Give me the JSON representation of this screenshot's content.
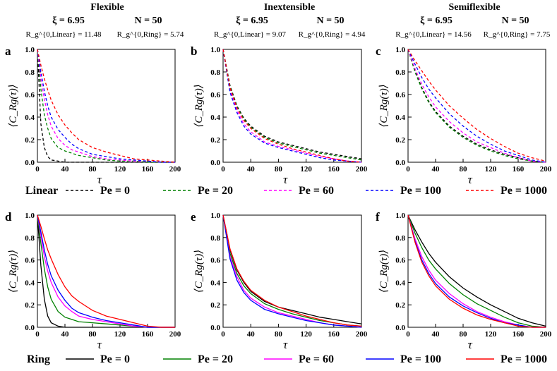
{
  "columns": [
    {
      "title": "Flexible",
      "xi": "ξ = 6.95",
      "N": "N = 50",
      "rg_linear": "R_g^{0,Linear} = 11.48",
      "rg_ring": "R_g^{0,Ring} = 5.74"
    },
    {
      "title": "Inextensible",
      "xi": "ξ = 6.95",
      "N": "N = 50",
      "rg_linear": "R_g^{0,Linear} = 9.07",
      "rg_ring": "R_g^{0,Ring} = 4.94"
    },
    {
      "title": "Semiflexible",
      "xi": "ξ = 6.95",
      "N": "N = 50",
      "rg_linear": "R_g^{0,Linear} = 14.56",
      "rg_ring": "R_g^{0,Ring} = 7.75"
    }
  ],
  "axes": {
    "xlabel": "τ",
    "ylabel": "⟨C_Rg(τ)⟩",
    "x_ticks": [
      "0",
      "40",
      "80",
      "120",
      "160",
      "200"
    ],
    "y_ticks": [
      "0.0",
      "0.2",
      "0.4",
      "0.6",
      "0.8",
      "1.0"
    ],
    "xlim": [
      0,
      200
    ],
    "ylim": [
      0,
      1
    ]
  },
  "legends": {
    "linear": {
      "title": "Linear",
      "style": "dashed"
    },
    "ring": {
      "title": "Ring",
      "style": "solid"
    },
    "entries": [
      {
        "label": "Pe = 0",
        "color": "#000000"
      },
      {
        "label": "Pe = 20",
        "color": "#008000"
      },
      {
        "label": "Pe = 60",
        "color": "#ff00ff"
      },
      {
        "label": "Pe = 100",
        "color": "#0000ff"
      },
      {
        "label": "Pe = 1000",
        "color": "#ff0000"
      }
    ]
  },
  "chart_data": [
    {
      "panel": "a",
      "type": "line",
      "title": "Flexible — Linear",
      "xlabel": "τ",
      "ylabel": "⟨C_Rg(τ)⟩",
      "xlim": [
        0,
        200
      ],
      "ylim": [
        0,
        1
      ],
      "line_style": "dashed",
      "x": [
        0,
        5,
        10,
        15,
        20,
        30,
        40,
        50,
        60,
        80,
        100,
        120,
        140,
        160,
        180,
        200
      ],
      "series": [
        {
          "name": "Pe = 0",
          "color": "#000000",
          "values": [
            1.0,
            0.34,
            0.13,
            0.05,
            0.02,
            0.01,
            0.0,
            0.0,
            0.0,
            0.0,
            0.0,
            0.0,
            0.0,
            0.0,
            0.0,
            0.0
          ]
        },
        {
          "name": "Pe = 20",
          "color": "#008000",
          "values": [
            1.0,
            0.65,
            0.42,
            0.3,
            0.21,
            0.13,
            0.1,
            0.08,
            0.06,
            0.04,
            0.02,
            0.01,
            0.01,
            0.0,
            0.0,
            0.0
          ]
        },
        {
          "name": "Pe = 60",
          "color": "#ff00ff",
          "values": [
            1.0,
            0.74,
            0.56,
            0.42,
            0.32,
            0.21,
            0.15,
            0.11,
            0.09,
            0.05,
            0.03,
            0.02,
            0.01,
            0.01,
            0.0,
            0.0
          ]
        },
        {
          "name": "Pe = 100",
          "color": "#0000ff",
          "values": [
            1.0,
            0.8,
            0.63,
            0.5,
            0.4,
            0.29,
            0.22,
            0.16,
            0.12,
            0.07,
            0.05,
            0.03,
            0.02,
            0.01,
            0.0,
            0.0
          ]
        },
        {
          "name": "Pe = 1000",
          "color": "#ff0000",
          "values": [
            1.0,
            0.86,
            0.74,
            0.64,
            0.55,
            0.42,
            0.33,
            0.26,
            0.2,
            0.13,
            0.09,
            0.06,
            0.03,
            0.02,
            0.01,
            0.0
          ]
        }
      ]
    },
    {
      "panel": "b",
      "type": "line",
      "title": "Inextensible — Linear",
      "xlabel": "τ",
      "ylabel": "⟨C_Rg(τ)⟩",
      "xlim": [
        0,
        200
      ],
      "ylim": [
        0,
        1
      ],
      "line_style": "dashed",
      "x": [
        0,
        10,
        20,
        30,
        40,
        60,
        80,
        100,
        120,
        140,
        160,
        180,
        200
      ],
      "series": [
        {
          "name": "Pe = 0",
          "color": "#000000",
          "values": [
            1.0,
            0.68,
            0.5,
            0.39,
            0.32,
            0.23,
            0.18,
            0.15,
            0.12,
            0.09,
            0.07,
            0.05,
            0.03
          ]
        },
        {
          "name": "Pe = 20",
          "color": "#008000",
          "values": [
            1.0,
            0.67,
            0.49,
            0.38,
            0.31,
            0.22,
            0.17,
            0.14,
            0.11,
            0.08,
            0.06,
            0.04,
            0.02
          ]
        },
        {
          "name": "Pe = 60",
          "color": "#ff00ff",
          "values": [
            1.0,
            0.64,
            0.46,
            0.34,
            0.27,
            0.18,
            0.14,
            0.11,
            0.08,
            0.05,
            0.03,
            0.01,
            0.0
          ]
        },
        {
          "name": "Pe = 100",
          "color": "#0000ff",
          "values": [
            1.0,
            0.62,
            0.44,
            0.32,
            0.25,
            0.17,
            0.13,
            0.1,
            0.07,
            0.04,
            0.02,
            0.01,
            0.0
          ]
        },
        {
          "name": "Pe = 1000",
          "color": "#ff0000",
          "values": [
            1.0,
            0.66,
            0.48,
            0.37,
            0.3,
            0.21,
            0.16,
            0.12,
            0.09,
            0.06,
            0.03,
            0.01,
            0.0
          ]
        }
      ]
    },
    {
      "panel": "c",
      "type": "line",
      "title": "Semiflexible — Linear",
      "xlabel": "τ",
      "ylabel": "⟨C_Rg(τ)⟩",
      "xlim": [
        0,
        200
      ],
      "ylim": [
        0,
        1
      ],
      "line_style": "dashed",
      "x": [
        0,
        10,
        20,
        30,
        40,
        60,
        80,
        100,
        120,
        140,
        160,
        180,
        200
      ],
      "series": [
        {
          "name": "Pe = 0",
          "color": "#000000",
          "values": [
            1.0,
            0.81,
            0.66,
            0.54,
            0.45,
            0.32,
            0.23,
            0.16,
            0.11,
            0.07,
            0.04,
            0.01,
            0.0
          ]
        },
        {
          "name": "Pe = 20",
          "color": "#008000",
          "values": [
            1.0,
            0.8,
            0.65,
            0.53,
            0.44,
            0.31,
            0.22,
            0.15,
            0.1,
            0.06,
            0.03,
            0.01,
            0.0
          ]
        },
        {
          "name": "Pe = 60",
          "color": "#ff00ff",
          "values": [
            1.0,
            0.83,
            0.69,
            0.58,
            0.49,
            0.36,
            0.26,
            0.18,
            0.13,
            0.08,
            0.04,
            0.01,
            0.0
          ]
        },
        {
          "name": "Pe = 100",
          "color": "#0000ff",
          "values": [
            1.0,
            0.87,
            0.75,
            0.65,
            0.57,
            0.43,
            0.32,
            0.23,
            0.16,
            0.1,
            0.06,
            0.02,
            0.0
          ]
        },
        {
          "name": "Pe = 1000",
          "color": "#ff0000",
          "values": [
            1.0,
            0.9,
            0.81,
            0.72,
            0.64,
            0.5,
            0.39,
            0.29,
            0.21,
            0.14,
            0.08,
            0.04,
            0.01
          ]
        }
      ]
    },
    {
      "panel": "d",
      "type": "line",
      "title": "Flexible — Ring",
      "xlabel": "τ",
      "ylabel": "⟨C_Rg(τ)⟩",
      "xlim": [
        0,
        200
      ],
      "ylim": [
        0,
        1
      ],
      "line_style": "solid",
      "x": [
        0,
        5,
        10,
        15,
        20,
        30,
        40,
        50,
        60,
        80,
        100,
        120,
        140,
        160,
        180,
        200
      ],
      "series": [
        {
          "name": "Pe = 0",
          "color": "#000000",
          "values": [
            1.0,
            0.55,
            0.25,
            0.1,
            0.04,
            0.01,
            0.0,
            0.0,
            0.0,
            0.0,
            0.0,
            0.0,
            0.0,
            0.0,
            0.0,
            0.0
          ]
        },
        {
          "name": "Pe = 20",
          "color": "#008000",
          "values": [
            1.0,
            0.75,
            0.52,
            0.36,
            0.25,
            0.14,
            0.09,
            0.07,
            0.05,
            0.04,
            0.03,
            0.02,
            0.01,
            0.0,
            0.0,
            0.0
          ]
        },
        {
          "name": "Pe = 60",
          "color": "#ff00ff",
          "values": [
            1.0,
            0.82,
            0.63,
            0.5,
            0.4,
            0.27,
            0.19,
            0.14,
            0.1,
            0.07,
            0.05,
            0.03,
            0.01,
            0.0,
            0.0,
            0.0
          ]
        },
        {
          "name": "Pe = 100",
          "color": "#0000ff",
          "values": [
            1.0,
            0.85,
            0.69,
            0.56,
            0.46,
            0.33,
            0.24,
            0.17,
            0.13,
            0.09,
            0.06,
            0.04,
            0.02,
            0.0,
            0.0,
            0.0
          ]
        },
        {
          "name": "Pe = 1000",
          "color": "#ff0000",
          "values": [
            1.0,
            0.9,
            0.79,
            0.69,
            0.61,
            0.47,
            0.36,
            0.28,
            0.23,
            0.15,
            0.1,
            0.07,
            0.04,
            0.01,
            0.0,
            0.0
          ]
        }
      ]
    },
    {
      "panel": "e",
      "type": "line",
      "title": "Inextensible — Ring",
      "xlabel": "τ",
      "ylabel": "⟨C_Rg(τ)⟩",
      "xlim": [
        0,
        200
      ],
      "ylim": [
        0,
        1
      ],
      "line_style": "solid",
      "x": [
        0,
        10,
        20,
        30,
        40,
        60,
        80,
        100,
        120,
        140,
        160,
        180,
        200
      ],
      "series": [
        {
          "name": "Pe = 0",
          "color": "#000000",
          "values": [
            1.0,
            0.69,
            0.51,
            0.4,
            0.32,
            0.23,
            0.18,
            0.15,
            0.12,
            0.09,
            0.07,
            0.05,
            0.03
          ]
        },
        {
          "name": "Pe = 20",
          "color": "#008000",
          "values": [
            1.0,
            0.66,
            0.48,
            0.37,
            0.3,
            0.21,
            0.16,
            0.12,
            0.09,
            0.06,
            0.04,
            0.02,
            0.01
          ]
        },
        {
          "name": "Pe = 60",
          "color": "#ff00ff",
          "values": [
            1.0,
            0.63,
            0.45,
            0.33,
            0.26,
            0.18,
            0.13,
            0.1,
            0.07,
            0.04,
            0.02,
            0.01,
            0.0
          ]
        },
        {
          "name": "Pe = 100",
          "color": "#0000ff",
          "values": [
            1.0,
            0.61,
            0.42,
            0.31,
            0.24,
            0.16,
            0.12,
            0.09,
            0.06,
            0.04,
            0.02,
            0.01,
            0.0
          ]
        },
        {
          "name": "Pe = 1000",
          "color": "#ff0000",
          "values": [
            1.0,
            0.7,
            0.52,
            0.41,
            0.33,
            0.24,
            0.18,
            0.14,
            0.1,
            0.07,
            0.04,
            0.02,
            0.01
          ]
        }
      ]
    },
    {
      "panel": "f",
      "type": "line",
      "title": "Semiflexible — Ring",
      "xlabel": "τ",
      "ylabel": "⟨C_Rg(τ)⟩",
      "xlim": [
        0,
        200
      ],
      "ylim": [
        0,
        1
      ],
      "line_style": "solid",
      "x": [
        0,
        10,
        20,
        30,
        40,
        60,
        80,
        100,
        120,
        140,
        160,
        180,
        200
      ],
      "series": [
        {
          "name": "Pe = 0",
          "color": "#000000",
          "values": [
            1.0,
            0.87,
            0.76,
            0.66,
            0.58,
            0.45,
            0.35,
            0.27,
            0.2,
            0.14,
            0.08,
            0.04,
            0.01
          ]
        },
        {
          "name": "Pe = 20",
          "color": "#008000",
          "values": [
            1.0,
            0.84,
            0.71,
            0.6,
            0.52,
            0.39,
            0.29,
            0.21,
            0.15,
            0.09,
            0.04,
            0.01,
            0.0
          ]
        },
        {
          "name": "Pe = 60",
          "color": "#ff00ff",
          "values": [
            1.0,
            0.79,
            0.63,
            0.51,
            0.42,
            0.3,
            0.21,
            0.14,
            0.09,
            0.05,
            0.02,
            0.0,
            0.0
          ]
        },
        {
          "name": "Pe = 100",
          "color": "#0000ff",
          "values": [
            1.0,
            0.77,
            0.6,
            0.48,
            0.39,
            0.27,
            0.19,
            0.13,
            0.08,
            0.04,
            0.02,
            0.0,
            0.0
          ]
        },
        {
          "name": "Pe = 1000",
          "color": "#ff0000",
          "values": [
            1.0,
            0.76,
            0.58,
            0.46,
            0.37,
            0.25,
            0.17,
            0.11,
            0.07,
            0.04,
            0.01,
            0.0,
            0.0
          ]
        }
      ]
    }
  ]
}
